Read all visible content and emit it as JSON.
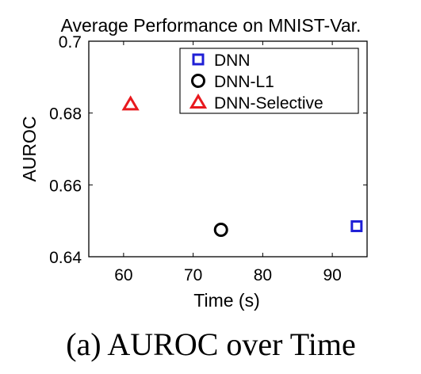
{
  "chart_data": {
    "type": "scatter",
    "title": "Average Performance on MNIST-Var.",
    "xlabel": "Time (s)",
    "ylabel": "AUROC",
    "xlim": [
      55,
      95
    ],
    "ylim": [
      0.64,
      0.7
    ],
    "xticks": [
      60,
      70,
      80,
      90
    ],
    "yticks": [
      0.64,
      0.66,
      0.68,
      0.7
    ],
    "xtick_labels": [
      "60",
      "70",
      "80",
      "90"
    ],
    "ytick_labels": [
      "0.64",
      "0.66",
      "0.68",
      "0.7"
    ],
    "grid": false,
    "legend_position": "top-right",
    "series": [
      {
        "name": "DNN",
        "marker": "square",
        "color": "#1f1fd6",
        "x": 93.5,
        "y": 0.6485
      },
      {
        "name": "DNN-L1",
        "marker": "circle",
        "color": "#000000",
        "x": 74.0,
        "y": 0.6475
      },
      {
        "name": "DNN-Selective",
        "marker": "triangle",
        "color": "#e8191e",
        "x": 61.0,
        "y": 0.6825
      }
    ]
  },
  "caption": "(a) AUROC over Time"
}
